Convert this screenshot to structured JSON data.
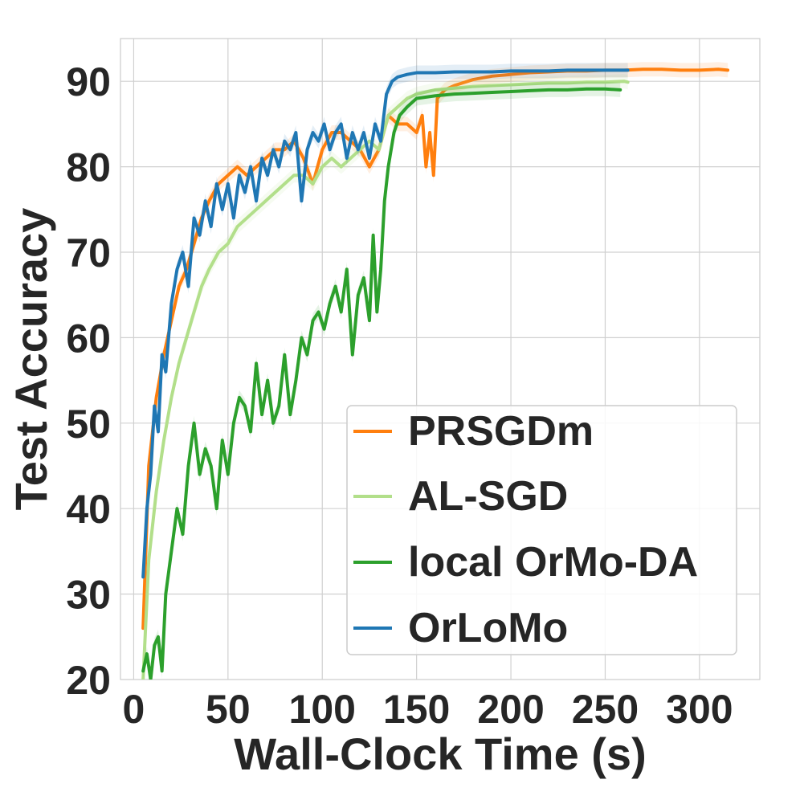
{
  "chart_data": {
    "type": "line",
    "title": "",
    "xlabel": "Wall-Clock Time (s)",
    "ylabel": "Test Accuracy",
    "xlim": [
      -7,
      332
    ],
    "ylim": [
      20,
      95
    ],
    "xticks": [
      0,
      50,
      100,
      150,
      200,
      250,
      300
    ],
    "yticks": [
      20,
      30,
      40,
      50,
      60,
      70,
      80,
      90
    ],
    "grid": true,
    "legend_position": "lower-right",
    "series": [
      {
        "name": "PRSGDm",
        "color": "#ff7f0e",
        "x": [
          5,
          8,
          12,
          16,
          20,
          24,
          28,
          32,
          36,
          40,
          45,
          50,
          55,
          60,
          65,
          70,
          75,
          80,
          85,
          90,
          95,
          100,
          105,
          110,
          115,
          120,
          125,
          130,
          135,
          140,
          145,
          150,
          153,
          155,
          157,
          159,
          161,
          165,
          170,
          180,
          190,
          200,
          210,
          220,
          230,
          240,
          250,
          260,
          270,
          280,
          290,
          300,
          310,
          315
        ],
        "y": [
          26,
          45,
          53,
          58,
          62,
          66,
          68,
          71,
          74,
          76,
          78,
          79,
          80,
          79,
          80,
          81,
          82,
          82,
          83,
          81,
          78,
          82,
          84,
          84,
          83,
          82,
          80,
          82,
          86,
          85,
          85,
          84,
          86,
          80,
          84,
          79,
          88,
          89,
          89.5,
          90.2,
          90.6,
          90.8,
          91,
          91.1,
          91.2,
          91.2,
          91.3,
          91.3,
          91.4,
          91.4,
          91.3,
          91.3,
          91.4,
          91.3
        ]
      },
      {
        "name": "AL-SGD",
        "color": "#b2df8a",
        "x": [
          5,
          8,
          12,
          16,
          20,
          24,
          28,
          32,
          36,
          40,
          45,
          50,
          55,
          60,
          65,
          70,
          75,
          80,
          85,
          90,
          95,
          100,
          105,
          110,
          115,
          120,
          125,
          130,
          135,
          140,
          145,
          150,
          160,
          170,
          180,
          190,
          200,
          210,
          220,
          230,
          240,
          250,
          260,
          262
        ],
        "y": [
          20,
          34,
          42,
          48,
          53,
          57,
          60,
          63,
          66,
          68,
          70,
          71,
          73,
          74,
          75,
          76,
          77,
          78,
          79,
          79,
          78,
          80,
          81,
          80,
          81,
          82,
          83,
          82,
          86,
          87,
          88,
          88.5,
          89,
          89.2,
          89.4,
          89.5,
          89.6,
          89.7,
          89.8,
          89.8,
          89.9,
          89.9,
          90,
          89.9
        ]
      },
      {
        "name": "local OrMo-DA",
        "color": "#2ca02c",
        "x": [
          5,
          7,
          9,
          11,
          13,
          15,
          17,
          20,
          23,
          26,
          29,
          32,
          35,
          38,
          41,
          44,
          47,
          50,
          53,
          56,
          59,
          62,
          65,
          68,
          71,
          74,
          77,
          80,
          83,
          86,
          89,
          92,
          95,
          98,
          101,
          104,
          107,
          110,
          113,
          116,
          119,
          122,
          125,
          127,
          129,
          131,
          133,
          135,
          138,
          141,
          145,
          150,
          160,
          170,
          180,
          190,
          200,
          210,
          220,
          230,
          240,
          250,
          258
        ],
        "y": [
          21,
          23,
          20,
          24,
          25,
          21,
          30,
          35,
          40,
          37,
          45,
          50,
          44,
          47,
          45,
          40,
          48,
          44,
          50,
          53,
          52,
          49,
          57,
          51,
          55,
          50,
          52,
          58,
          51,
          55,
          60,
          58,
          62,
          63,
          61,
          64,
          66,
          63,
          68,
          58,
          65,
          67,
          62,
          72,
          63,
          68,
          76,
          80,
          84,
          86,
          87,
          88,
          88.3,
          88.5,
          88.6,
          88.7,
          88.8,
          88.9,
          89,
          89,
          89.1,
          89.1,
          89
        ]
      },
      {
        "name": "OrLoMo",
        "color": "#1f77b4",
        "x": [
          5,
          7,
          9,
          11,
          13,
          15,
          17,
          20,
          23,
          26,
          29,
          32,
          35,
          38,
          41,
          44,
          47,
          50,
          53,
          56,
          59,
          62,
          65,
          68,
          71,
          74,
          77,
          80,
          83,
          86,
          89,
          92,
          95,
          98,
          101,
          104,
          107,
          110,
          113,
          116,
          119,
          122,
          125,
          128,
          131,
          134,
          137,
          140,
          145,
          150,
          160,
          170,
          180,
          190,
          200,
          210,
          220,
          230,
          240,
          250,
          262
        ],
        "y": [
          32,
          40,
          44,
          52,
          49,
          58,
          56,
          64,
          68,
          70,
          66,
          74,
          72,
          76,
          73,
          78,
          75,
          78,
          74,
          79,
          77,
          80,
          76,
          81,
          79,
          82,
          80,
          83,
          82,
          84,
          76,
          82,
          84,
          83,
          85,
          82,
          84,
          85,
          81,
          84,
          82,
          84,
          81,
          85,
          83,
          88.5,
          90,
          90.5,
          90.8,
          91,
          91,
          91.1,
          91.1,
          91.1,
          91.2,
          91.2,
          91.2,
          91.3,
          91.3,
          91.3,
          91.3
        ]
      }
    ]
  }
}
